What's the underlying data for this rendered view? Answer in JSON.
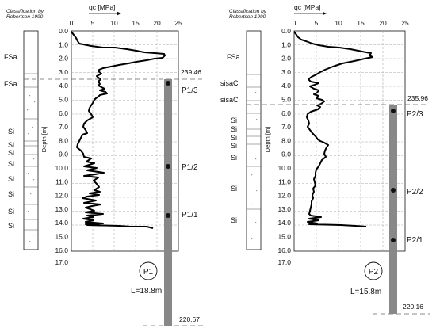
{
  "left_panel": {
    "classification_label_line1": "Classification by",
    "classification_label_line2": "Robertson 1990",
    "qc_label": "qc [MPa]",
    "x_ticks": [
      "0",
      "5",
      "10",
      "15",
      "20",
      "25"
    ],
    "depth_label": "Depth [m]",
    "depth_ticks": [
      "0.0",
      "1.0",
      "2.0",
      "3.0",
      "4.0",
      "5.0",
      "6.0",
      "7.0",
      "8.0",
      "9.0",
      "10.0",
      "11.0",
      "12.0",
      "13.0",
      "14.0",
      "15.0",
      "16.0",
      "17.0"
    ],
    "soil_labels": [
      "FSa",
      "FSa",
      "Si",
      "Si",
      "Si",
      "Si",
      "Si",
      "Si",
      "Si",
      "Si"
    ],
    "elev_top": "239.46",
    "elev_bottom": "220.67",
    "pile_name": "P1",
    "pile_length": "L=18.8m",
    "sensors": [
      "P1/3",
      "P1/2",
      "P1/1"
    ]
  },
  "right_panel": {
    "classification_label_line1": "Classification by",
    "classification_label_line2": "Robertson 1990",
    "qc_label": "qc [MPa]",
    "x_ticks": [
      "0",
      "5",
      "10",
      "15",
      "20",
      "25"
    ],
    "depth_label": "Depth [m]",
    "depth_ticks": [
      "0.0",
      "1.0",
      "2.0",
      "3.0",
      "4.0",
      "5.0",
      "6.0",
      "7.0",
      "8.0",
      "9.0",
      "10.0",
      "11.0",
      "12.0",
      "13.0",
      "14.0",
      "15.0",
      "16.0",
      "17.0"
    ],
    "soil_labels": [
      "FSa",
      "sisaCl",
      "sisaCl",
      "Si",
      "Si",
      "Si",
      "Si",
      "Si",
      "Si",
      "Si"
    ],
    "elev_top": "235.96",
    "elev_bottom": "220.16",
    "pile_name": "P2",
    "pile_length": "L=15.8m",
    "sensors": [
      "P2/3",
      "P2/2",
      "P2/1"
    ]
  }
}
